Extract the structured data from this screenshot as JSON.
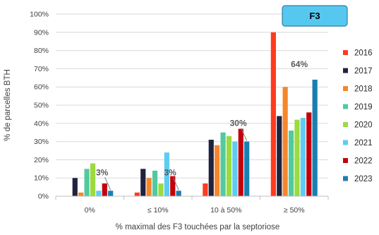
{
  "chart_data": {
    "type": "bar",
    "title": "F3",
    "xlabel": "% maximal des F3 touchées par la septoriose",
    "ylabel": "% de parcelles BTH",
    "ylim": [
      0,
      100
    ],
    "yticks": [
      0,
      10,
      20,
      30,
      40,
      50,
      60,
      70,
      80,
      90,
      100
    ],
    "ytick_suffix": "%",
    "categories": [
      "0%",
      "≤ 10%",
      "10 à 50%",
      "≥ 50%"
    ],
    "grid": true,
    "legend_position": "right",
    "series": [
      {
        "name": "2016",
        "color": "#FF3B1F",
        "values": [
          0,
          2,
          7,
          90
        ]
      },
      {
        "name": "2017",
        "color": "#1F2340",
        "values": [
          10,
          15,
          31,
          44
        ]
      },
      {
        "name": "2018",
        "color": "#F7862A",
        "values": [
          2,
          10,
          28,
          60
        ]
      },
      {
        "name": "2019",
        "color": "#52C9A0",
        "values": [
          15,
          14,
          35,
          36
        ]
      },
      {
        "name": "2020",
        "color": "#9ADB3E",
        "values": [
          18,
          7,
          33,
          42
        ]
      },
      {
        "name": "2021",
        "color": "#5CCCF2",
        "values": [
          3,
          24,
          30,
          43
        ]
      },
      {
        "name": "2022",
        "color": "#C2000B",
        "values": [
          7,
          11,
          37,
          46
        ]
      },
      {
        "name": "2023",
        "color": "#1A7FB0",
        "values": [
          3,
          3,
          30,
          64
        ]
      }
    ],
    "annotations": [
      {
        "text": "3%",
        "category": 0,
        "series": 7,
        "value": 3
      },
      {
        "text": "3%",
        "category": 1,
        "series": 7,
        "value": 3
      },
      {
        "text": "30%",
        "category": 2,
        "series": 7,
        "value": 30
      },
      {
        "text": "64%",
        "category": 3,
        "series": 7,
        "value": 64
      }
    ]
  }
}
